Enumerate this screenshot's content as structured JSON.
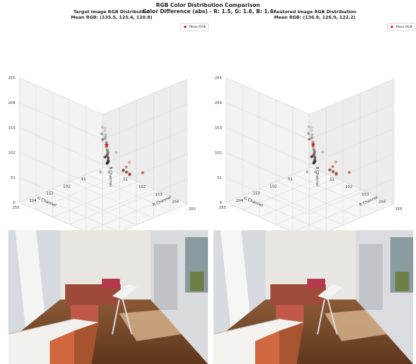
{
  "figure": {
    "title_line1": "RGB Color Distribution Comparison",
    "title_line2": "Color Difference (abs) - R: 1.5, G: 1.6, B: 1.4"
  },
  "panels": [
    {
      "title_line1": "Target Image RGB Distribution",
      "title_line2": "Mean RGB: (135.5, 125.4, 120.8)",
      "legend_label": "Mean RGB",
      "mean_rgb": [
        135.5,
        125.4,
        120.8
      ]
    },
    {
      "title_line1": "Restored Image RGB Distribution",
      "title_line2": "Mean RGB: (136.9, 126.9, 122.2)",
      "legend_label": "Mean RGB",
      "mean_rgb": [
        136.9,
        126.9,
        122.2
      ]
    }
  ],
  "axes": {
    "ticks": [
      "0",
      "51",
      "102",
      "153",
      "204",
      "255"
    ],
    "r_ticks": [
      "0",
      "51",
      "102",
      "153",
      "204",
      "255"
    ],
    "x_label": "R Channel",
    "y_label": "G Channel",
    "z_label": "B Channel"
  },
  "chart_data": [
    {
      "type": "scatter",
      "dimensions": 3,
      "title": "Target Image RGB Distribution",
      "subtitle": "Mean RGB: (135.5, 125.4, 120.8)",
      "xlabel": "R Channel",
      "ylabel": "G Channel",
      "zlabel": "B Channel",
      "xlim": [
        0,
        255
      ],
      "ylim": [
        0,
        255
      ],
      "zlim": [
        0,
        255
      ],
      "ticks": [
        0,
        51,
        102,
        153,
        204,
        255
      ],
      "grid": true,
      "legend": "top-right",
      "mean_rgb": [
        135.5,
        125.4,
        120.8
      ],
      "points": [
        [
          240,
          238,
          236
        ],
        [
          232,
          226,
          220
        ],
        [
          222,
          214,
          206
        ],
        [
          212,
          206,
          200
        ],
        [
          200,
          194,
          188
        ],
        [
          188,
          180,
          172
        ],
        [
          175,
          168,
          160
        ],
        [
          162,
          156,
          150
        ],
        [
          150,
          140,
          132
        ],
        [
          138,
          128,
          118
        ],
        [
          126,
          114,
          104
        ],
        [
          114,
          100,
          92
        ],
        [
          100,
          88,
          80
        ],
        [
          88,
          74,
          66
        ],
        [
          76,
          62,
          54
        ],
        [
          64,
          50,
          44
        ],
        [
          52,
          40,
          36
        ],
        [
          40,
          30,
          28
        ],
        [
          210,
          170,
          140
        ],
        [
          190,
          120,
          90
        ],
        [
          170,
          90,
          60
        ],
        [
          150,
          70,
          50
        ],
        [
          130,
          60,
          45
        ],
        [
          110,
          50,
          40
        ],
        [
          200,
          80,
          70
        ],
        [
          230,
          150,
          120
        ],
        [
          90,
          80,
          72
        ],
        [
          160,
          150,
          140
        ],
        [
          180,
          182,
          186
        ],
        [
          140,
          144,
          150
        ],
        [
          120,
          122,
          126
        ],
        [
          60,
          56,
          54
        ]
      ]
    },
    {
      "type": "scatter",
      "dimensions": 3,
      "title": "Restored Image RGB Distribution",
      "subtitle": "Mean RGB: (136.9, 126.9, 122.2)",
      "xlabel": "R Channel",
      "ylabel": "G Channel",
      "zlabel": "B Channel",
      "xlim": [
        0,
        255
      ],
      "ylim": [
        0,
        255
      ],
      "zlim": [
        0,
        255
      ],
      "ticks": [
        0,
        51,
        102,
        153,
        204,
        255
      ],
      "grid": true,
      "legend": "top-right",
      "mean_rgb": [
        136.9,
        126.9,
        122.2
      ],
      "points": [
        [
          242,
          240,
          238
        ],
        [
          234,
          228,
          222
        ],
        [
          224,
          216,
          208
        ],
        [
          214,
          208,
          202
        ],
        [
          202,
          196,
          190
        ],
        [
          190,
          182,
          174
        ],
        [
          177,
          170,
          162
        ],
        [
          164,
          158,
          152
        ],
        [
          152,
          142,
          134
        ],
        [
          140,
          130,
          120
        ],
        [
          128,
          116,
          106
        ],
        [
          116,
          102,
          94
        ],
        [
          102,
          90,
          82
        ],
        [
          90,
          76,
          68
        ],
        [
          78,
          64,
          56
        ],
        [
          66,
          52,
          46
        ],
        [
          54,
          42,
          38
        ],
        [
          42,
          32,
          30
        ],
        [
          212,
          172,
          142
        ],
        [
          192,
          122,
          92
        ],
        [
          172,
          92,
          62
        ],
        [
          152,
          72,
          52
        ],
        [
          132,
          62,
          47
        ],
        [
          112,
          52,
          42
        ],
        [
          202,
          82,
          72
        ],
        [
          232,
          152,
          122
        ],
        [
          92,
          82,
          74
        ],
        [
          162,
          152,
          142
        ],
        [
          182,
          184,
          188
        ],
        [
          142,
          146,
          152
        ],
        [
          122,
          124,
          128
        ],
        [
          62,
          58,
          56
        ]
      ]
    }
  ]
}
